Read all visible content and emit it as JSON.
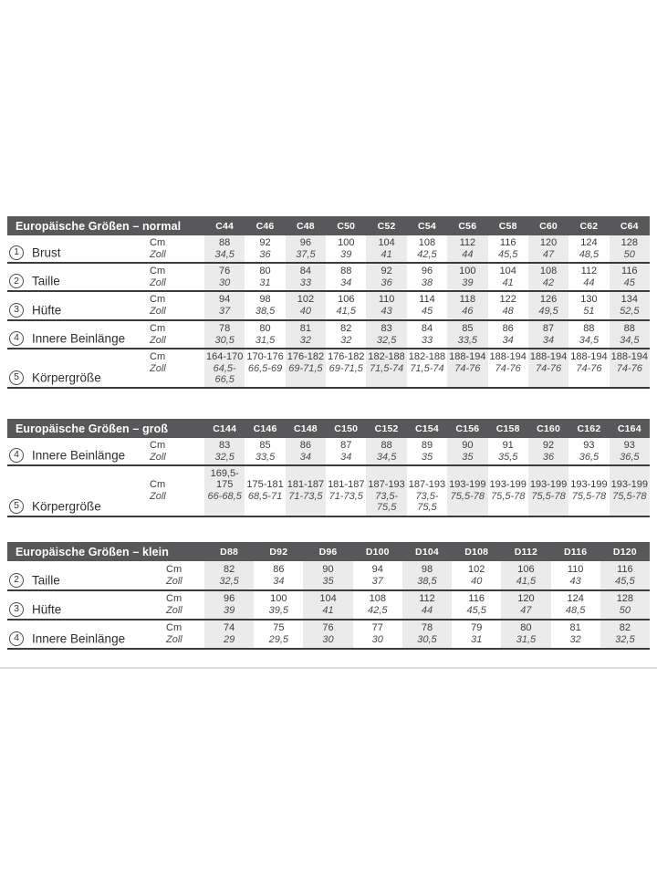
{
  "colors": {
    "header_bar": "#58585a",
    "header_text": "#ffffff",
    "body_text": "#3b3b3b",
    "zoll_text": "#4c4c4c",
    "stripe": "#ebebeb",
    "rule": "#3c3c3c",
    "divider": "#dcdcdc",
    "page_bg": "#ffffff"
  },
  "units": {
    "cm": "Cm",
    "zoll": "Zoll"
  },
  "tables": [
    {
      "id": "normal",
      "title": "Europäische Größen – normal",
      "columns": [
        "C44",
        "C46",
        "C48",
        "C50",
        "C52",
        "C54",
        "C56",
        "C58",
        "C60",
        "C62",
        "C64"
      ],
      "rows": [
        {
          "num": "1",
          "label": "Brust",
          "cm": [
            "88",
            "92",
            "96",
            "100",
            "104",
            "108",
            "112",
            "116",
            "120",
            "124",
            "128"
          ],
          "zoll": [
            "34,5",
            "36",
            "37,5",
            "39",
            "41",
            "42,5",
            "44",
            "45,5",
            "47",
            "48,5",
            "50"
          ]
        },
        {
          "num": "2",
          "label": "Taille",
          "cm": [
            "76",
            "80",
            "84",
            "88",
            "92",
            "96",
            "100",
            "104",
            "108",
            "112",
            "116"
          ],
          "zoll": [
            "30",
            "31",
            "33",
            "34",
            "36",
            "38",
            "39",
            "41",
            "42",
            "44",
            "45"
          ]
        },
        {
          "num": "3",
          "label": "Hüfte",
          "cm": [
            "94",
            "98",
            "102",
            "106",
            "110",
            "114",
            "118",
            "122",
            "126",
            "130",
            "134"
          ],
          "zoll": [
            "37",
            "38,5",
            "40",
            "41,5",
            "43",
            "45",
            "46",
            "48",
            "49,5",
            "51",
            "52,5"
          ]
        },
        {
          "num": "4",
          "label": "Innere Beinlänge",
          "cm": [
            "78",
            "80",
            "81",
            "82",
            "83",
            "84",
            "85",
            "86",
            "87",
            "88",
            "88"
          ],
          "zoll": [
            "30,5",
            "31,5",
            "32",
            "32",
            "32,5",
            "33",
            "33,5",
            "34",
            "34",
            "34,5",
            "34,5"
          ]
        },
        {
          "num": "5",
          "label": "Körpergröße",
          "cm": [
            "164-170",
            "170-176",
            "176-182",
            "176-182",
            "182-188",
            "182-188",
            "188-194",
            "188-194",
            "188-194",
            "188-194",
            "188-194"
          ],
          "zoll": [
            "64,5-66,5",
            "66,5-69",
            "69-71,5",
            "69-71,5",
            "71,5-74",
            "71,5-74",
            "74-76",
            "74-76",
            "74-76",
            "74-76",
            "74-76"
          ]
        }
      ]
    },
    {
      "id": "gross",
      "title": "Europäische Größen – groß",
      "columns": [
        "C144",
        "C146",
        "C148",
        "C150",
        "C152",
        "C154",
        "C156",
        "C158",
        "C160",
        "C162",
        "C164"
      ],
      "rows": [
        {
          "num": "4",
          "label": "Innere Beinlänge",
          "cm": [
            "83",
            "85",
            "86",
            "87",
            "88",
            "89",
            "90",
            "91",
            "92",
            "93",
            "93"
          ],
          "zoll": [
            "32,5",
            "33,5",
            "34",
            "34",
            "34,5",
            "35",
            "35",
            "35,5",
            "36",
            "36,5",
            "36,5"
          ]
        },
        {
          "num": "5",
          "label": "Körpergröße",
          "cm": [
            "169,5-175",
            "175-181",
            "181-187",
            "181-187",
            "187-193",
            "187-193",
            "193-199",
            "193-199",
            "193-199",
            "193-199",
            "193-199"
          ],
          "zoll": [
            "66-68,5",
            "68,5-71",
            "71-73,5",
            "71-73,5",
            "73,5-75,5",
            "73,5-75,5",
            "75,5-78",
            "75,5-78",
            "75,5-78",
            "75,5-78",
            "75,5-78"
          ]
        }
      ]
    },
    {
      "id": "klein",
      "title": "Europäische Größen – klein",
      "columns": [
        "D88",
        "D92",
        "D96",
        "D100",
        "D104",
        "D108",
        "D112",
        "D116",
        "D120"
      ],
      "rows": [
        {
          "num": "2",
          "label": "Taille",
          "cm": [
            "82",
            "86",
            "90",
            "94",
            "98",
            "102",
            "106",
            "110",
            "116"
          ],
          "zoll": [
            "32,5",
            "34",
            "35",
            "37",
            "38,5",
            "40",
            "41,5",
            "43",
            "45,5"
          ]
        },
        {
          "num": "3",
          "label": "Hüfte",
          "cm": [
            "96",
            "100",
            "104",
            "108",
            "112",
            "116",
            "120",
            "124",
            "128"
          ],
          "zoll": [
            "39",
            "39,5",
            "41",
            "42,5",
            "44",
            "45,5",
            "47",
            "48,5",
            "50"
          ]
        },
        {
          "num": "4",
          "label": "Innere Beinlänge",
          "cm": [
            "74",
            "75",
            "76",
            "77",
            "78",
            "79",
            "80",
            "81",
            "82"
          ],
          "zoll": [
            "29",
            "29,5",
            "30",
            "30",
            "30,5",
            "31",
            "31,5",
            "32",
            "32,5"
          ]
        }
      ]
    }
  ]
}
